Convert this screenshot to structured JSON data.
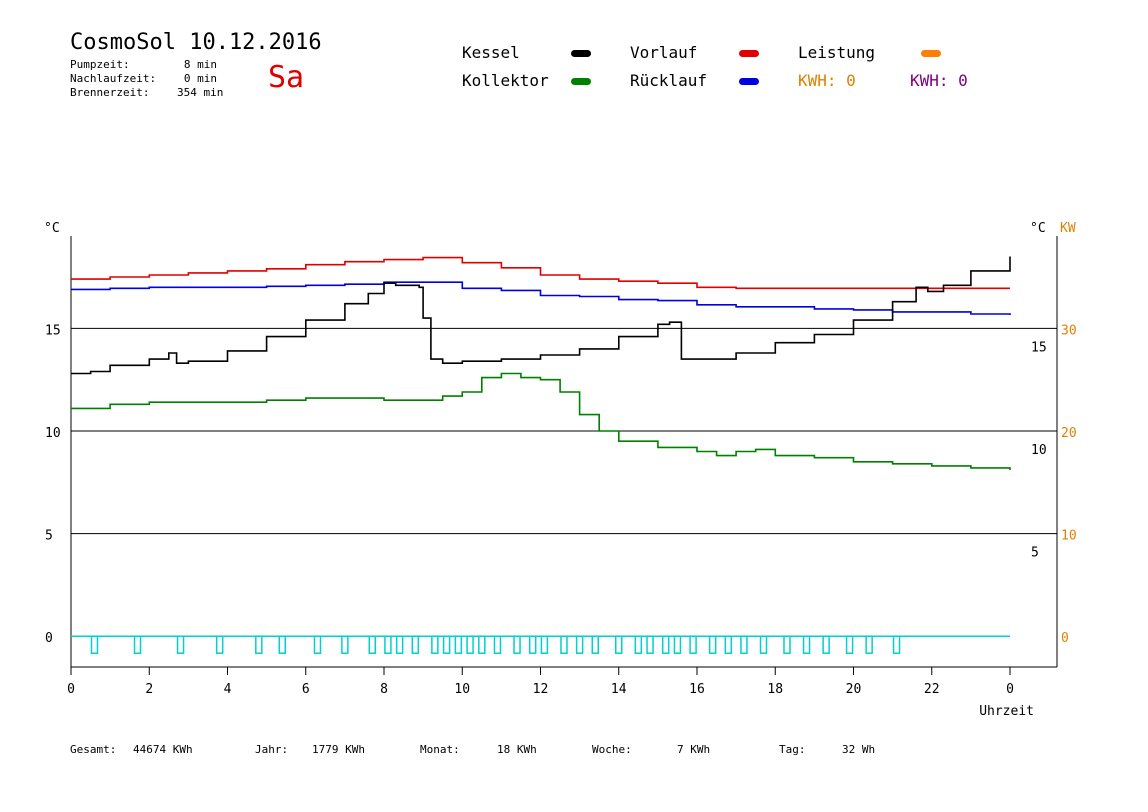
{
  "header": {
    "title": "CosmoSol 10.12.2016",
    "weekday": "Sa",
    "info": [
      {
        "label": "Pumpzeit:",
        "value": "8 min"
      },
      {
        "label": "Nachlaufzeit:",
        "value": "0 min"
      },
      {
        "label": "Brennerzeit:",
        "value": "354 min"
      }
    ]
  },
  "legend": {
    "kessel": {
      "label": "Kessel",
      "color": "#000000"
    },
    "vorlauf": {
      "label": "Vorlauf",
      "color": "#e00000"
    },
    "leistung": {
      "label": "Leistung",
      "color": "#ff8000"
    },
    "kollektor": {
      "label": "Kollektor",
      "color": "#008000"
    },
    "ruecklauf": {
      "label": "Rücklauf",
      "color": "#0000e0"
    },
    "kwh_orange": {
      "label": "KWH: 0",
      "color": "#e08000"
    },
    "kwh_purple": {
      "label": "KWH: 0",
      "color": "#800080"
    }
  },
  "footer": [
    {
      "label": "Gesamt:",
      "value": "44674 KWh"
    },
    {
      "label": "Jahr:",
      "value": "1779 KWh"
    },
    {
      "label": "Monat:",
      "value": "18 KWh"
    },
    {
      "label": "Woche:",
      "value": "7 KWh"
    },
    {
      "label": "Tag:",
      "value": "32 Wh"
    }
  ],
  "chart_data": {
    "type": "line",
    "xlabel": "Uhrzeit",
    "ylabel_left": "°C",
    "ylabel_right": "°C",
    "ylabel_right2": "KW",
    "xlim": [
      0,
      24
    ],
    "ylim_left": [
      -1.5,
      19.5
    ],
    "ylim_right": [
      -1.5,
      19.5
    ],
    "ylim_right2": [
      -3,
      39
    ],
    "x_ticks": [
      "0",
      "2",
      "4",
      "6",
      "8",
      "10",
      "12",
      "14",
      "16",
      "18",
      "20",
      "22",
      "0"
    ],
    "y_ticks_left": [
      "0",
      "5",
      "10",
      "15"
    ],
    "y_ticks_right": [
      "5",
      "10",
      "15"
    ],
    "y_ticks_right2": [
      "0",
      "10",
      "20",
      "30"
    ],
    "grid": "horizontal",
    "series": [
      {
        "name": "Vorlauf",
        "color": "#e00000",
        "points": [
          [
            0,
            17.4
          ],
          [
            1,
            17.5
          ],
          [
            2,
            17.6
          ],
          [
            3,
            17.7
          ],
          [
            4,
            17.8
          ],
          [
            5,
            17.9
          ],
          [
            6,
            18.1
          ],
          [
            7,
            18.25
          ],
          [
            8,
            18.35
          ],
          [
            9,
            18.45
          ],
          [
            10,
            18.2
          ],
          [
            11,
            17.95
          ],
          [
            12,
            17.6
          ],
          [
            13,
            17.4
          ],
          [
            14,
            17.3
          ],
          [
            15,
            17.2
          ],
          [
            16,
            17.0
          ],
          [
            17,
            16.95
          ],
          [
            18,
            16.95
          ],
          [
            19,
            16.95
          ],
          [
            20,
            16.95
          ],
          [
            21,
            16.95
          ],
          [
            22,
            16.95
          ],
          [
            23,
            16.95
          ],
          [
            24,
            16.95
          ]
        ]
      },
      {
        "name": "Rücklauf",
        "color": "#0000e0",
        "points": [
          [
            0,
            16.9
          ],
          [
            1,
            16.95
          ],
          [
            2,
            17.0
          ],
          [
            3,
            17.0
          ],
          [
            4,
            17.0
          ],
          [
            5,
            17.05
          ],
          [
            6,
            17.1
          ],
          [
            7,
            17.15
          ],
          [
            8,
            17.25
          ],
          [
            9,
            17.25
          ],
          [
            10,
            16.95
          ],
          [
            11,
            16.85
          ],
          [
            12,
            16.6
          ],
          [
            13,
            16.55
          ],
          [
            14,
            16.4
          ],
          [
            15,
            16.35
          ],
          [
            16,
            16.15
          ],
          [
            17,
            16.05
          ],
          [
            18,
            16.05
          ],
          [
            19,
            15.95
          ],
          [
            20,
            15.9
          ],
          [
            21,
            15.8
          ],
          [
            22,
            15.8
          ],
          [
            23,
            15.7
          ],
          [
            24,
            15.65
          ]
        ]
      },
      {
        "name": "Kessel",
        "color": "#000000",
        "points": [
          [
            0,
            12.8
          ],
          [
            0.5,
            12.9
          ],
          [
            1,
            13.2
          ],
          [
            2,
            13.5
          ],
          [
            2.5,
            13.8
          ],
          [
            2.7,
            13.3
          ],
          [
            3,
            13.4
          ],
          [
            4,
            13.9
          ],
          [
            5,
            14.6
          ],
          [
            6,
            15.4
          ],
          [
            7,
            16.2
          ],
          [
            7.6,
            16.7
          ],
          [
            8,
            17.2
          ],
          [
            8.3,
            17.1
          ],
          [
            8.9,
            17.0
          ],
          [
            9.0,
            15.5
          ],
          [
            9.2,
            13.5
          ],
          [
            9.5,
            13.3
          ],
          [
            10,
            13.4
          ],
          [
            11,
            13.5
          ],
          [
            12,
            13.7
          ],
          [
            13,
            14.0
          ],
          [
            14,
            14.6
          ],
          [
            15,
            15.2
          ],
          [
            15.3,
            15.3
          ],
          [
            15.6,
            13.5
          ],
          [
            16,
            13.5
          ],
          [
            17,
            13.8
          ],
          [
            18,
            14.3
          ],
          [
            19,
            14.7
          ],
          [
            20,
            15.4
          ],
          [
            21,
            16.3
          ],
          [
            21.6,
            17.0
          ],
          [
            21.9,
            16.8
          ],
          [
            22.3,
            17.1
          ],
          [
            23,
            17.8
          ],
          [
            24,
            18.5
          ]
        ]
      },
      {
        "name": "Kollektor",
        "color": "#008000",
        "points": [
          [
            0,
            11.1
          ],
          [
            1,
            11.3
          ],
          [
            2,
            11.4
          ],
          [
            3,
            11.4
          ],
          [
            4,
            11.4
          ],
          [
            5,
            11.5
          ],
          [
            6,
            11.6
          ],
          [
            7,
            11.6
          ],
          [
            8,
            11.5
          ],
          [
            9,
            11.5
          ],
          [
            9.5,
            11.7
          ],
          [
            10,
            11.9
          ],
          [
            10.5,
            12.6
          ],
          [
            11,
            12.8
          ],
          [
            11.5,
            12.6
          ],
          [
            12,
            12.5
          ],
          [
            12.5,
            11.9
          ],
          [
            13,
            10.8
          ],
          [
            13.5,
            10.0
          ],
          [
            14,
            9.5
          ],
          [
            15,
            9.2
          ],
          [
            16,
            9.0
          ],
          [
            16.5,
            8.8
          ],
          [
            17,
            9.0
          ],
          [
            17.5,
            9.1
          ],
          [
            18,
            8.8
          ],
          [
            19,
            8.7
          ],
          [
            20,
            8.5
          ],
          [
            21,
            8.4
          ],
          [
            22,
            8.3
          ],
          [
            23,
            8.2
          ],
          [
            24,
            8.1
          ]
        ]
      }
    ],
    "pump_pulses_x": [
      0.6,
      1.7,
      2.8,
      3.8,
      4.8,
      5.4,
      6.3,
      7.0,
      7.7,
      8.1,
      8.4,
      8.8,
      9.3,
      9.6,
      9.9,
      10.2,
      10.5,
      10.9,
      11.4,
      11.8,
      12.1,
      12.6,
      13.0,
      13.4,
      14.0,
      14.5,
      14.8,
      15.2,
      15.5,
      15.9,
      16.4,
      16.8,
      17.2,
      17.7,
      18.3,
      18.8,
      19.3,
      19.9,
      20.4,
      21.1
    ]
  }
}
